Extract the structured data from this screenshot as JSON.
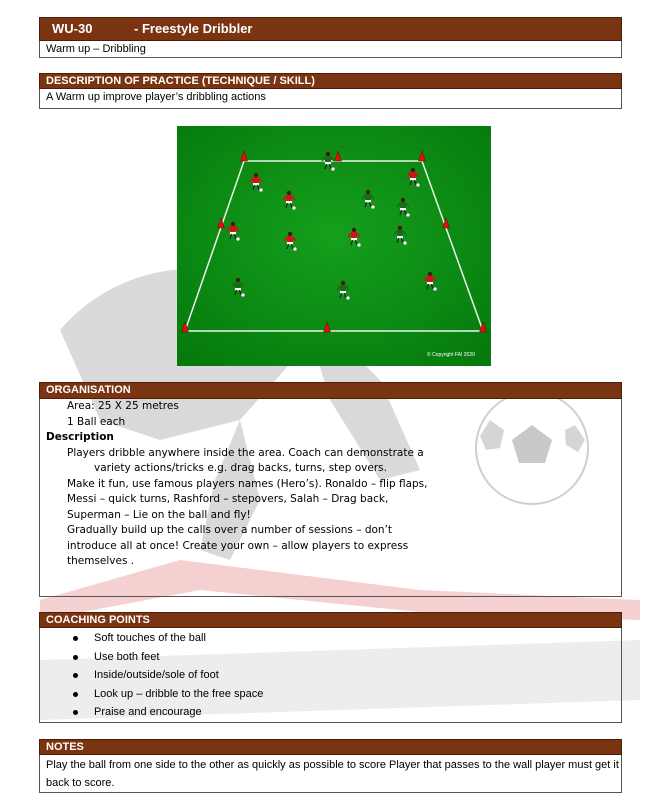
{
  "title": {
    "code": "WU-30",
    "name": "-  Freestyle Dribbler"
  },
  "subtitle": "Warm up – Dribbling",
  "description": {
    "header": "DESCRIPTION OF PRACTICE (TECHNIQUE / SKILL)",
    "text": "A Warm up improve player’s dribbling actions"
  },
  "diagram": {
    "copyright": "© Copyright FAI 2020"
  },
  "organisation": {
    "header": "ORGANISATION",
    "area": "Area: 25 X 25 metres",
    "balls": "1 Ball each",
    "description_label": "Description",
    "lines": [
      "Players dribble anywhere inside the area. Coach can demonstrate a",
      "variety actions/tricks e.g. drag backs, turns, step overs.",
      "Make it fun, use famous players names (Hero’s). Ronaldo – flip flaps,",
      "Messi – quick turns, Rashford – stepovers, Salah – Drag back,",
      "Superman – Lie on the ball and fly!",
      "Gradually build up the calls over a number of sessions – don’t",
      "introduce all at once! Create your own – allow players to express",
      "themselves ."
    ]
  },
  "coaching_points": {
    "header": "COACHING POINTS",
    "items": [
      " Soft touches of the ball",
      "Use both feet",
      "Inside/outside/sole of foot",
      "Look up – dribble to the free space",
      "Praise and encourage"
    ]
  },
  "notes": {
    "header": "NOTES",
    "text": "Play the ball from one side to the other as quickly as possible to score Player that passes to the wall player must get it back to score."
  },
  "colors": {
    "header_bg": "#7a3411",
    "pitch_green": "#0a8a12",
    "cone_red": "#e01010"
  }
}
